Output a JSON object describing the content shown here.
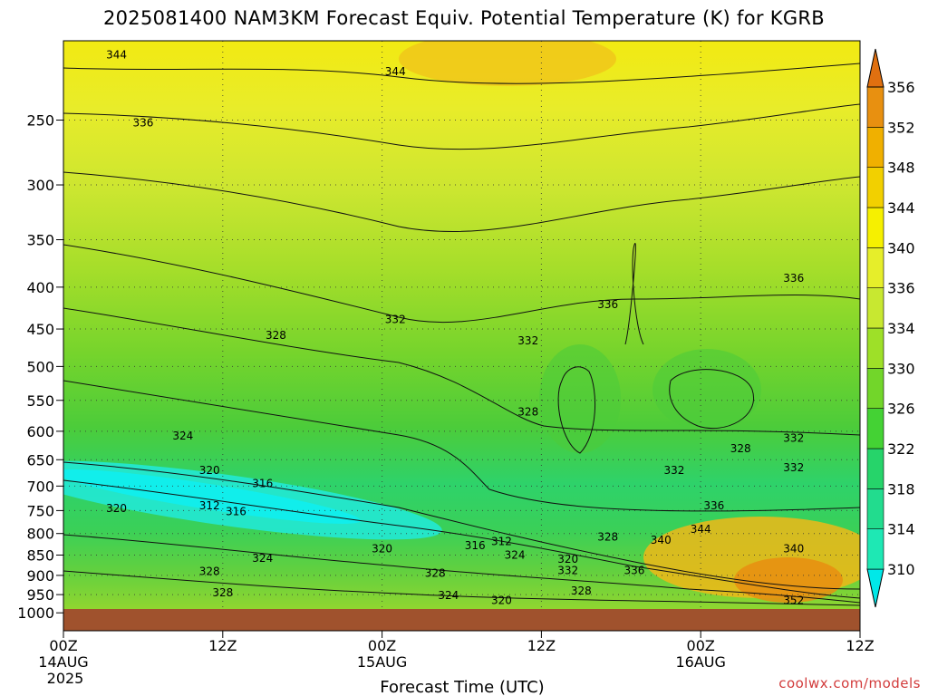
{
  "title": "2025081400 NAM3KM Forecast Equiv. Potential Temperature (K) for KGRB",
  "watermark": "coolwx.com/models",
  "chart_data": {
    "type": "heatmap",
    "title": "2025081400 NAM3KM Forecast Equiv. Potential Temperature (K) for KGRB",
    "xlabel": "Forecast Time (UTC)",
    "ylabel": "",
    "x_ticks": [
      {
        "hour": 0,
        "label": "00Z",
        "sub": "14AUG",
        "sub2": "2025"
      },
      {
        "hour": 12,
        "label": "12Z",
        "sub": "",
        "sub2": ""
      },
      {
        "hour": 24,
        "label": "00Z",
        "sub": "15AUG",
        "sub2": ""
      },
      {
        "hour": 36,
        "label": "12Z",
        "sub": "",
        "sub2": ""
      },
      {
        "hour": 48,
        "label": "00Z",
        "sub": "16AUG",
        "sub2": ""
      },
      {
        "hour": 60,
        "label": "12Z",
        "sub": "",
        "sub2": ""
      }
    ],
    "xlim": [
      0,
      60
    ],
    "y_ticks": [
      250,
      300,
      350,
      400,
      450,
      500,
      550,
      600,
      650,
      700,
      750,
      800,
      850,
      900,
      950,
      1000
    ],
    "ylim": [
      200,
      1020
    ],
    "y_scale": "log",
    "grid": true,
    "colorbar": {
      "levels": [
        310,
        314,
        318,
        322,
        326,
        330,
        334,
        336,
        340,
        344,
        348,
        352,
        356
      ],
      "colors": [
        "#00e8e8",
        "#1ee8b4",
        "#22dc8e",
        "#26d46a",
        "#44d234",
        "#72d62a",
        "#9ee028",
        "#c8e830",
        "#e6ee2a",
        "#f6f000",
        "#f2d000",
        "#f0b000",
        "#e89010",
        "#e07010"
      ],
      "placement": "right"
    },
    "contour_labels": [
      {
        "hour": 4,
        "p": 208,
        "value": "344"
      },
      {
        "hour": 25,
        "p": 218,
        "value": "344"
      },
      {
        "hour": 6,
        "p": 252,
        "value": "336"
      },
      {
        "hour": 25,
        "p": 438,
        "value": "332"
      },
      {
        "hour": 16,
        "p": 458,
        "value": "328"
      },
      {
        "hour": 35,
        "p": 465,
        "value": "332"
      },
      {
        "hour": 41,
        "p": 420,
        "value": "336"
      },
      {
        "hour": 55,
        "p": 390,
        "value": "336"
      },
      {
        "hour": 35,
        "p": 568,
        "value": "328"
      },
      {
        "hour": 9,
        "p": 608,
        "value": "324"
      },
      {
        "hour": 51,
        "p": 630,
        "value": "328"
      },
      {
        "hour": 55,
        "p": 612,
        "value": "332"
      },
      {
        "hour": 55,
        "p": 665,
        "value": "332"
      },
      {
        "hour": 46,
        "p": 670,
        "value": "332"
      },
      {
        "hour": 11,
        "p": 670,
        "value": "320"
      },
      {
        "hour": 15,
        "p": 695,
        "value": "316"
      },
      {
        "hour": 4,
        "p": 745,
        "value": "320"
      },
      {
        "hour": 11,
        "p": 740,
        "value": "312"
      },
      {
        "hour": 13,
        "p": 752,
        "value": "316"
      },
      {
        "hour": 49,
        "p": 740,
        "value": "336"
      },
      {
        "hour": 48,
        "p": 790,
        "value": "344"
      },
      {
        "hour": 45,
        "p": 815,
        "value": "340"
      },
      {
        "hour": 55,
        "p": 835,
        "value": "340"
      },
      {
        "hour": 33,
        "p": 818,
        "value": "312"
      },
      {
        "hour": 31,
        "p": 828,
        "value": "316"
      },
      {
        "hour": 41,
        "p": 808,
        "value": "328"
      },
      {
        "hour": 24,
        "p": 835,
        "value": "320"
      },
      {
        "hour": 34,
        "p": 850,
        "value": "324"
      },
      {
        "hour": 38,
        "p": 860,
        "value": "320"
      },
      {
        "hour": 15,
        "p": 858,
        "value": "324"
      },
      {
        "hour": 11,
        "p": 890,
        "value": "328"
      },
      {
        "hour": 28,
        "p": 895,
        "value": "328"
      },
      {
        "hour": 38,
        "p": 888,
        "value": "332"
      },
      {
        "hour": 43,
        "p": 888,
        "value": "336"
      },
      {
        "hour": 12,
        "p": 945,
        "value": "328"
      },
      {
        "hour": 39,
        "p": 940,
        "value": "328"
      },
      {
        "hour": 29,
        "p": 952,
        "value": "324"
      },
      {
        "hour": 33,
        "p": 965,
        "value": "320"
      },
      {
        "hour": 55,
        "p": 965,
        "value": "352"
      }
    ]
  }
}
